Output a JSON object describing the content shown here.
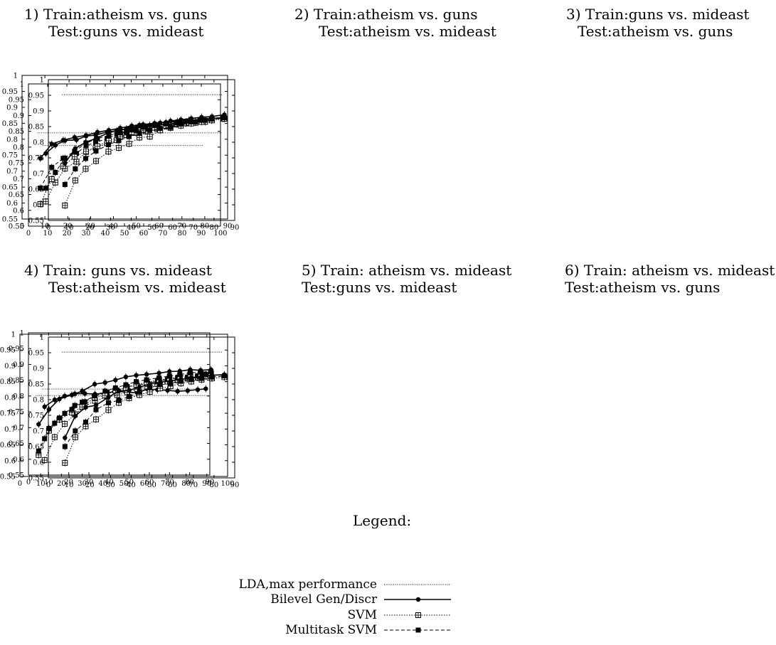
{
  "chart_data": [
    {
      "type": "line",
      "title_line1": "1) Train:atheism vs. guns",
      "title_line2": "Test:guns vs. mideast",
      "xlim": [
        0,
        100
      ],
      "ylim": [
        0.55,
        1
      ],
      "xticks": [
        0,
        10,
        20,
        30,
        40,
        50,
        60,
        70,
        80,
        90,
        100
      ],
      "yticks": [
        0.55,
        0.6,
        0.65,
        0.7,
        0.75,
        0.8,
        0.85,
        0.9,
        0.95,
        1
      ],
      "x": [
        9,
        14,
        19,
        25,
        30,
        35,
        41,
        46,
        51,
        56,
        61,
        67,
        72,
        77,
        82,
        87,
        92
      ],
      "lda": 0.805,
      "series": [
        {
          "name": "Bilevel Gen/Discr",
          "values": [
            0.78,
            0.806,
            0.821,
            0.823,
            0.835,
            0.838,
            0.848,
            0.852,
            0.858,
            0.861,
            0.864,
            0.869,
            0.872,
            0.875,
            0.878,
            0.88,
            0.884
          ]
        },
        {
          "name": "SVM",
          "values": [
            0.628,
            0.688,
            0.732,
            0.754,
            0.785,
            0.798,
            0.812,
            0.822,
            0.838,
            0.845,
            0.85,
            0.858,
            0.866,
            0.872,
            0.875,
            0.877,
            0.88
          ]
        },
        {
          "name": "Multitask SVM",
          "values": [
            0.67,
            0.72,
            0.765,
            0.78,
            0.805,
            0.815,
            0.827,
            0.84,
            0.848,
            0.854,
            0.858,
            0.868,
            0.872,
            0.876,
            0.88,
            0.88,
            0.885
          ]
        }
      ]
    },
    {
      "type": "line",
      "title_line1": "2) Train:atheism vs. guns",
      "title_line2": "Test:atheism vs. mideast",
      "xlim": [
        0,
        90
      ],
      "ylim": [
        0.55,
        1
      ],
      "xticks": [
        0,
        10,
        20,
        30,
        40,
        50,
        60,
        70,
        80,
        90
      ],
      "yticks": [
        0.55,
        0.6,
        0.65,
        0.7,
        0.75,
        0.8,
        0.85,
        0.9,
        0.95,
        1
      ],
      "x": [
        8,
        13,
        18,
        23,
        28,
        33,
        38,
        43,
        48,
        53,
        58,
        63,
        68,
        73,
        78,
        83,
        88
      ],
      "lda": 0.82,
      "series": [
        {
          "name": "Bilevel Gen/Discr",
          "values": [
            0.74,
            0.785,
            0.797,
            0.806,
            0.812,
            0.822,
            0.828,
            0.835,
            0.842,
            0.846,
            0.85,
            0.853,
            0.856,
            0.859,
            0.862,
            0.865,
            0.868
          ]
        },
        {
          "name": "SVM",
          "values": [
            0.597,
            0.675,
            0.716,
            0.745,
            0.762,
            0.778,
            0.795,
            0.808,
            0.822,
            0.828,
            0.836,
            0.842,
            0.848,
            0.852,
            0.856,
            0.86,
            0.864
          ]
        },
        {
          "name": "Multitask SVM",
          "values": [
            0.647,
            0.712,
            0.74,
            0.762,
            0.788,
            0.802,
            0.812,
            0.82,
            0.83,
            0.838,
            0.844,
            0.848,
            0.852,
            0.856,
            0.86,
            0.862,
            0.866
          ]
        }
      ]
    },
    {
      "type": "line",
      "title_line1": "3) Train:guns vs. mideast",
      "title_line2": "Test:atheism vs. guns",
      "xlim": [
        0,
        90
      ],
      "ylim": [
        0.55,
        1
      ],
      "xticks": [
        0,
        10,
        20,
        30,
        40,
        50,
        60,
        70,
        80,
        90
      ],
      "yticks": [
        0.55,
        0.6,
        0.65,
        0.7,
        0.75,
        0.8,
        0.85,
        0.9,
        0.95,
        1
      ],
      "x": [
        8,
        13,
        18,
        23,
        29,
        34,
        39,
        44,
        49,
        54,
        59,
        64,
        69,
        74,
        79,
        85
      ],
      "lda": 0.952,
      "series": [
        {
          "name": "Bilevel Gen/Discr",
          "values": [
            0.733,
            0.78,
            0.8,
            0.812,
            0.83,
            0.84,
            0.842,
            0.855,
            0.855,
            0.862,
            0.868,
            0.872,
            0.876,
            0.88,
            0.882,
            0.888
          ]
        },
        {
          "name": "SVM",
          "values": [
            0.598,
            0.678,
            0.715,
            0.74,
            0.77,
            0.782,
            0.795,
            0.815,
            0.818,
            0.838,
            0.846,
            0.853,
            0.86,
            0.865,
            0.87,
            0.875
          ]
        },
        {
          "name": "Multitask SVM",
          "values": [
            0.665,
            0.715,
            0.748,
            0.772,
            0.792,
            0.805,
            0.818,
            0.828,
            0.838,
            0.844,
            0.848,
            0.858,
            0.865,
            0.87,
            0.874,
            0.878
          ]
        }
      ]
    },
    {
      "type": "line",
      "title_line1": "4) Train: guns vs. mideast",
      "title_line2": "Test:atheism vs. mideast",
      "xlim": [
        0,
        90
      ],
      "ylim": [
        0.55,
        1
      ],
      "xticks": [
        0,
        10,
        20,
        30,
        40,
        50,
        60,
        70,
        80,
        90
      ],
      "yticks": [
        0.55,
        0.6,
        0.65,
        0.7,
        0.75,
        0.8,
        0.85,
        0.9,
        0.95,
        1
      ],
      "x": [
        8,
        13,
        18,
        23,
        28,
        33,
        39,
        44,
        49,
        54,
        59,
        64,
        69,
        74,
        79,
        84,
        88
      ],
      "lda": 0.822,
      "series": [
        {
          "name": "Bilevel Gen/Discr",
          "values": [
            0.766,
            0.788,
            0.8,
            0.807,
            0.808,
            0.806,
            0.81,
            0.815,
            0.812,
            0.81,
            0.822,
            0.82,
            0.818,
            0.815,
            0.817,
            0.82,
            0.823
          ]
        },
        {
          "name": "SVM",
          "values": [
            0.597,
            0.67,
            0.712,
            0.742,
            0.768,
            0.785,
            0.797,
            0.803,
            0.812,
            0.822,
            0.83,
            0.838,
            0.846,
            0.85,
            0.855,
            0.858,
            0.862
          ]
        },
        {
          "name": "Multitask SVM",
          "values": [
            0.665,
            0.714,
            0.745,
            0.77,
            0.782,
            0.8,
            0.812,
            0.818,
            0.83,
            0.834,
            0.84,
            0.847,
            0.852,
            0.857,
            0.86,
            0.864,
            0.868
          ]
        }
      ]
    },
    {
      "type": "line",
      "title_line1": "5) Train: atheism vs. mideast",
      "title_line2": "Test:guns vs. mideast",
      "xlim": [
        0,
        100
      ],
      "ylim": [
        0.55,
        1
      ],
      "xticks": [
        0,
        10,
        20,
        30,
        40,
        50,
        60,
        70,
        80,
        90,
        100
      ],
      "yticks": [
        0.55,
        0.6,
        0.65,
        0.7,
        0.75,
        0.8,
        0.85,
        0.9,
        0.95,
        1
      ],
      "x": [
        9,
        14,
        19,
        25,
        30,
        36,
        41,
        46,
        51,
        56,
        61,
        67,
        72,
        77,
        82,
        87,
        92
      ],
      "lda": 0.806,
      "series": [
        {
          "name": "Bilevel Gen/Discr",
          "values": [
            0.715,
            0.762,
            0.795,
            0.808,
            0.82,
            0.842,
            0.847,
            0.855,
            0.865,
            0.87,
            0.873,
            0.877,
            0.882,
            0.883,
            0.888,
            0.886,
            0.888
          ]
        },
        {
          "name": "SVM",
          "values": [
            0.618,
            0.695,
            0.73,
            0.752,
            0.77,
            0.8,
            0.806,
            0.822,
            0.83,
            0.84,
            0.848,
            0.855,
            0.86,
            0.866,
            0.873,
            0.875,
            0.876
          ]
        },
        {
          "name": "Multitask SVM",
          "values": [
            0.63,
            0.702,
            0.735,
            0.762,
            0.785,
            0.805,
            0.82,
            0.83,
            0.84,
            0.85,
            0.856,
            0.862,
            0.868,
            0.872,
            0.878,
            0.88,
            0.882
          ]
        }
      ]
    },
    {
      "type": "line",
      "title_line1": "6) Train: atheism vs. mideast",
      "title_line2": "Test:atheism vs. guns",
      "xlim": [
        0,
        90
      ],
      "ylim": [
        0.55,
        1
      ],
      "xticks": [
        0,
        10,
        20,
        30,
        40,
        50,
        60,
        70,
        80,
        90
      ],
      "yticks": [
        0.55,
        0.6,
        0.65,
        0.7,
        0.75,
        0.8,
        0.85,
        0.9,
        0.95,
        1
      ],
      "x": [
        8,
        13,
        18,
        23,
        29,
        34,
        39,
        44,
        49,
        54,
        59,
        64,
        69,
        74,
        79,
        85
      ],
      "lda": 0.952,
      "series": [
        {
          "name": "Bilevel Gen/Discr",
          "values": [
            0.678,
            0.748,
            0.776,
            0.782,
            0.808,
            0.828,
            0.83,
            0.84,
            0.85,
            0.856,
            0.86,
            0.865,
            0.87,
            0.875,
            0.878,
            0.88
          ]
        },
        {
          "name": "SVM",
          "values": [
            0.598,
            0.68,
            0.715,
            0.737,
            0.767,
            0.79,
            0.805,
            0.815,
            0.825,
            0.836,
            0.843,
            0.852,
            0.858,
            0.864,
            0.868,
            0.872
          ]
        },
        {
          "name": "Multitask SVM",
          "values": [
            0.65,
            0.7,
            0.728,
            0.768,
            0.79,
            0.798,
            0.81,
            0.825,
            0.838,
            0.848,
            0.852,
            0.86,
            0.864,
            0.868,
            0.872,
            0.876
          ]
        }
      ]
    }
  ],
  "legend": {
    "heading": "Legend:",
    "items": [
      {
        "label": "LDA,max performance"
      },
      {
        "label": "Bilevel Gen/Discr"
      },
      {
        "label": "SVM"
      },
      {
        "label": "Multitask SVM"
      }
    ]
  }
}
